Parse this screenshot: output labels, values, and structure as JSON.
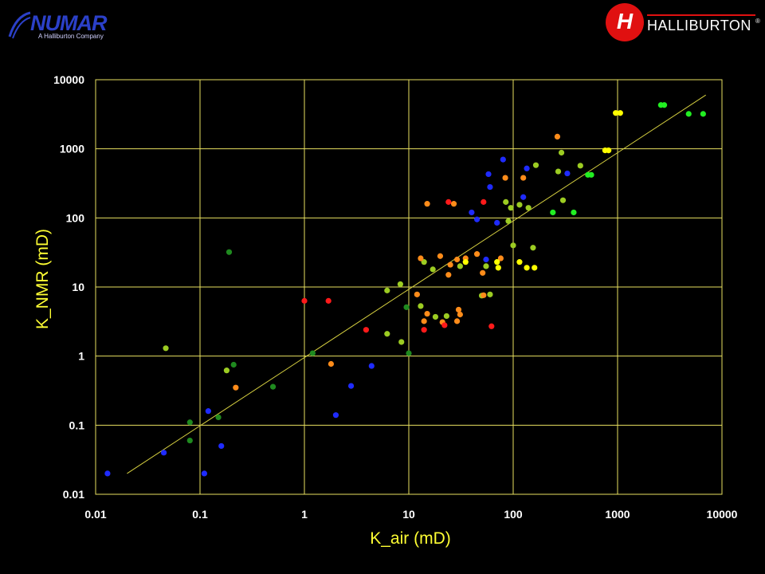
{
  "logos": {
    "left_name": "NUMAR",
    "left_sub": "A Halliburton Company",
    "right_icon": "halliburton-h-icon",
    "right_name": "HALLIBURTON",
    "right_reg": "®"
  },
  "colors": {
    "background": "#000000",
    "grid": "#e8e060",
    "fit_line": "#d6d040",
    "tick_text": "#ffffff",
    "axis_title": "#ffff33",
    "blue": "#1f2bff",
    "dark_green": "#1f8a1f",
    "yellow_green": "#9ccc22",
    "bright_green": "#22ee22",
    "orange": "#ff8c1a",
    "red": "#ff1a1a",
    "yellow": "#ffff00"
  },
  "chart_data": {
    "type": "scatter",
    "title": "",
    "xlabel": "K_air (mD)",
    "ylabel": "K_NMR (mD)",
    "x_scale": "log",
    "y_scale": "log",
    "xlim": [
      0.01,
      10000
    ],
    "ylim": [
      0.01,
      10000
    ],
    "x_ticks": [
      "0.01",
      "0.1",
      "1",
      "10",
      "100",
      "1000",
      "10000"
    ],
    "y_ticks": [
      "0.01",
      "0.1",
      "1",
      "10",
      "100",
      "1000",
      "10000"
    ],
    "grid": true,
    "fit_line": {
      "x": [
        0.02,
        7000
      ],
      "y": [
        0.02,
        6000
      ]
    },
    "series": [
      {
        "color": "#1f2bff",
        "points": [
          [
            0.013,
            0.02
          ],
          [
            0.045,
            0.04
          ],
          [
            0.11,
            0.02
          ],
          [
            0.12,
            0.16
          ],
          [
            0.16,
            0.05
          ],
          [
            2.0,
            0.14
          ],
          [
            2.8,
            0.37
          ],
          [
            4.4,
            0.72
          ],
          [
            40,
            120
          ],
          [
            45,
            95
          ],
          [
            55,
            25
          ],
          [
            58,
            430
          ],
          [
            60,
            280
          ],
          [
            70,
            85
          ],
          [
            80,
            700
          ],
          [
            125,
            200
          ],
          [
            135,
            520
          ],
          [
            330,
            440
          ]
        ]
      },
      {
        "color": "#1f8a1f",
        "points": [
          [
            0.08,
            0.11
          ],
          [
            0.08,
            0.06
          ],
          [
            0.15,
            0.13
          ],
          [
            0.19,
            32
          ],
          [
            0.21,
            0.75
          ],
          [
            0.5,
            0.36
          ],
          [
            1.2,
            1.1
          ],
          [
            9.5,
            5.1
          ],
          [
            10,
            1.1
          ]
        ]
      },
      {
        "color": "#9ccc22",
        "points": [
          [
            0.047,
            1.3
          ],
          [
            0.18,
            0.62
          ],
          [
            6.2,
            8.9
          ],
          [
            6.2,
            2.1
          ],
          [
            8.3,
            11
          ],
          [
            8.5,
            1.6
          ],
          [
            13,
            5.3
          ],
          [
            14,
            23
          ],
          [
            17,
            18
          ],
          [
            18,
            3.7
          ],
          [
            23,
            3.8
          ],
          [
            31,
            20
          ],
          [
            50,
            7.5
          ],
          [
            55,
            20
          ],
          [
            60,
            7.8
          ],
          [
            85,
            170
          ],
          [
            90,
            90
          ],
          [
            95,
            140
          ],
          [
            100,
            40
          ],
          [
            115,
            155
          ],
          [
            140,
            140
          ],
          [
            155,
            37
          ],
          [
            165,
            580
          ],
          [
            270,
            470
          ],
          [
            290,
            880
          ],
          [
            300,
            180
          ],
          [
            440,
            570
          ]
        ]
      },
      {
        "color": "#22ee22",
        "points": [
          [
            240,
            120
          ],
          [
            380,
            120
          ],
          [
            520,
            420
          ],
          [
            560,
            420
          ],
          [
            2600,
            4300
          ],
          [
            2800,
            4300
          ],
          [
            4800,
            3200
          ],
          [
            6600,
            3200
          ]
        ]
      },
      {
        "color": "#ff8c1a",
        "points": [
          [
            0.22,
            0.35
          ],
          [
            1.8,
            0.77
          ],
          [
            12,
            7.8
          ],
          [
            13,
            26
          ],
          [
            14,
            3.2
          ],
          [
            15,
            4.1
          ],
          [
            15,
            160
          ],
          [
            20,
            28
          ],
          [
            21,
            3.1
          ],
          [
            24,
            15
          ],
          [
            25,
            21
          ],
          [
            27,
            160
          ],
          [
            29,
            25
          ],
          [
            29,
            3.2
          ],
          [
            30,
            4.7
          ],
          [
            31,
            4
          ],
          [
            35,
            26
          ],
          [
            45,
            30
          ],
          [
            51,
            16
          ],
          [
            52,
            7.6
          ],
          [
            76,
            26
          ],
          [
            84,
            380
          ],
          [
            125,
            380
          ],
          [
            265,
            1500
          ]
        ]
      },
      {
        "color": "#ff1a1a",
        "points": [
          [
            1.0,
            6.3
          ],
          [
            1.7,
            6.3
          ],
          [
            3.9,
            2.4
          ],
          [
            14,
            2.4
          ],
          [
            22,
            2.8
          ],
          [
            24,
            170
          ],
          [
            52,
            170
          ],
          [
            62,
            2.7
          ]
        ]
      },
      {
        "color": "#ffff00",
        "points": [
          [
            35,
            23
          ],
          [
            70,
            23
          ],
          [
            72,
            19
          ],
          [
            115,
            23
          ],
          [
            135,
            19
          ],
          [
            160,
            19
          ],
          [
            760,
            950
          ],
          [
            820,
            950
          ],
          [
            960,
            3300
          ],
          [
            1060,
            3300
          ]
        ]
      }
    ]
  }
}
